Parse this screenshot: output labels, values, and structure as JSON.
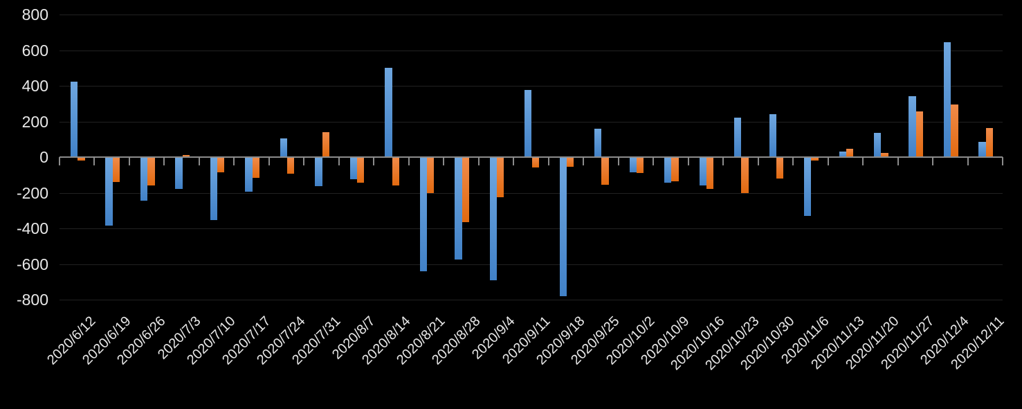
{
  "colors": {
    "background": "#000000",
    "gridline": "#222222",
    "axis_line": "#8C8C8C",
    "tick_label": "#E8E8E8",
    "series_blue": "#5B9BD5",
    "series_blue_gradient_top": "#6FA7E0",
    "series_blue_gradient_bottom": "#4181C7",
    "series_orange": "#ED7D31",
    "series_orange_gradient_top": "#F08B4A",
    "series_orange_gradient_bottom": "#E26A10"
  },
  "chart_data": {
    "type": "bar",
    "title": "",
    "xlabel": "",
    "ylabel": "",
    "grid": true,
    "legend": "none",
    "x_label_rotation_deg": 45,
    "ylim": [
      -800,
      800
    ],
    "yticks": [
      800,
      600,
      400,
      200,
      0,
      -200,
      -400,
      -600,
      -800
    ],
    "categories": [
      "2020/6/12",
      "2020/6/19",
      "2020/6/26",
      "2020/7/3",
      "2020/7/10",
      "2020/7/17",
      "2020/7/24",
      "2020/7/31",
      "2020/8/7",
      "2020/8/14",
      "2020/8/21",
      "2020/8/28",
      "2020/9/4",
      "2020/9/11",
      "2020/9/18",
      "2020/9/25",
      "2020/10/2",
      "2020/10/9",
      "2020/10/16",
      "2020/10/23",
      "2020/10/30",
      "2020/11/6",
      "2020/11/13",
      "2020/11/20",
      "2020/11/27",
      "2020/12/4",
      "2020/12/11"
    ],
    "series": [
      {
        "name": "blue-series",
        "color": "#5B9BD5",
        "values": [
          425,
          -385,
          -245,
          -180,
          -355,
          -195,
          105,
          -165,
          -125,
          500,
          -640,
          -575,
          -690,
          375,
          -780,
          160,
          -85,
          -145,
          -160,
          220,
          240,
          -330,
          30,
          135,
          340,
          645,
          85
        ]
      },
      {
        "name": "orange-series",
        "color": "#ED7D31",
        "values": [
          -20,
          -140,
          -160,
          10,
          -85,
          -115,
          -95,
          140,
          -145,
          -160,
          -200,
          -365,
          -225,
          -60,
          -55,
          -155,
          -90,
          -135,
          -180,
          -200,
          -120,
          -20,
          48,
          25,
          258,
          295,
          165
        ]
      }
    ]
  }
}
